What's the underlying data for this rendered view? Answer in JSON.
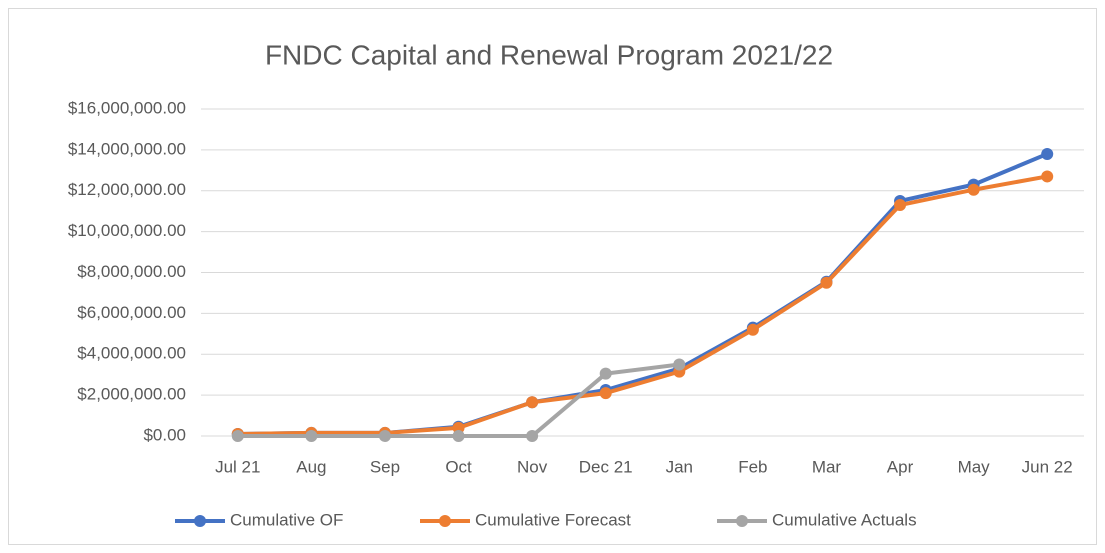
{
  "chart_data": {
    "type": "line",
    "title": "FNDC Capital and Renewal Program 2021/22",
    "categories": [
      "Jul 21",
      "Aug",
      "Sep",
      "Oct",
      "Nov",
      "Dec 21",
      "Jan",
      "Feb",
      "Mar",
      "Apr",
      "May",
      "Jun 22"
    ],
    "series": [
      {
        "name": "Cumulative OF",
        "color": "#4472c4",
        "values": [
          100000,
          150000,
          150000,
          450000,
          1650000,
          2250000,
          3300000,
          5300000,
          7550000,
          11500000,
          12300000,
          13800000
        ]
      },
      {
        "name": "Cumulative Forecast",
        "color": "#ed7d31",
        "values": [
          100000,
          150000,
          150000,
          400000,
          1650000,
          2100000,
          3150000,
          5200000,
          7500000,
          11300000,
          12050000,
          12700000
        ]
      },
      {
        "name": "Cumulative Actuals",
        "color": "#a5a5a5",
        "values": [
          0,
          0,
          0,
          0,
          0,
          3050000,
          3500000,
          null,
          null,
          null,
          null,
          null
        ]
      }
    ],
    "ylim": [
      0,
      16000000
    ],
    "yticks": [
      {
        "value": 0,
        "label": "$0.00"
      },
      {
        "value": 2000000,
        "label": "$2,000,000.00"
      },
      {
        "value": 4000000,
        "label": "$4,000,000.00"
      },
      {
        "value": 6000000,
        "label": "$6,000,000.00"
      },
      {
        "value": 8000000,
        "label": "$8,000,000.00"
      },
      {
        "value": 10000000,
        "label": "$10,000,000.00"
      },
      {
        "value": 12000000,
        "label": "$12,000,000.00"
      },
      {
        "value": 14000000,
        "label": "$14,000,000.00"
      },
      {
        "value": 16000000,
        "label": "$16,000,000.00"
      }
    ],
    "grid": true,
    "legend": "bottom"
  }
}
